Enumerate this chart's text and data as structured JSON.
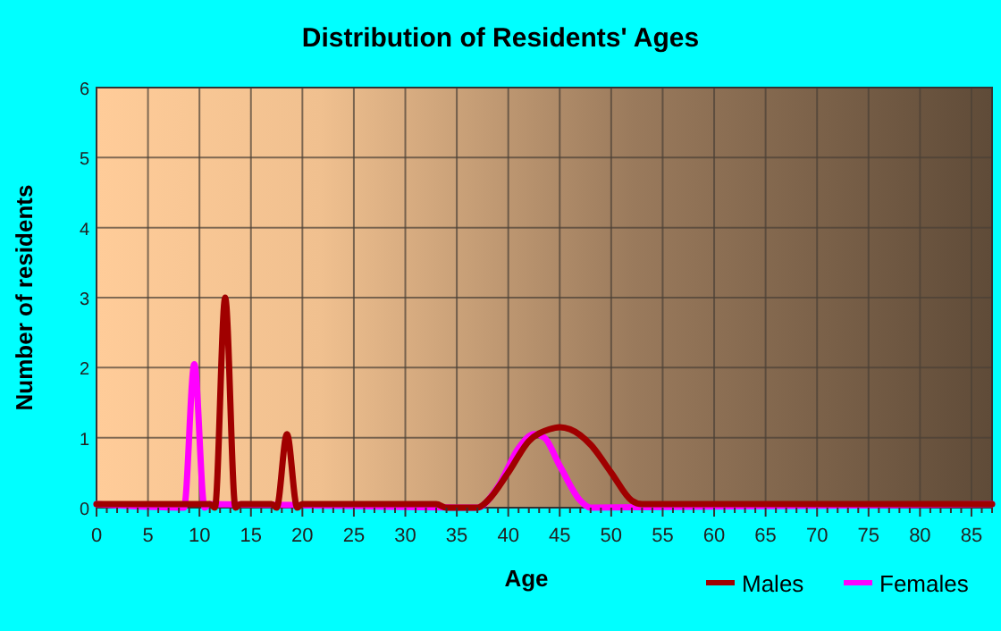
{
  "chart_data": {
    "type": "line",
    "title": "Distribution of Residents' Ages",
    "xlabel": "Age",
    "ylabel": "Number of residents",
    "xlim": [
      0,
      87
    ],
    "xticks": [
      0,
      5,
      10,
      15,
      20,
      25,
      30,
      35,
      40,
      45,
      50,
      55,
      60,
      65,
      70,
      75,
      80,
      85
    ],
    "ylim": [
      0,
      6
    ],
    "yticks": [
      0,
      1,
      2,
      3,
      4,
      5,
      6
    ],
    "grid": true,
    "legend": "bottom right",
    "marker": "none",
    "line_style": "solid",
    "series": [
      {
        "name": "Males",
        "color": "#a00000",
        "x": [
          0,
          11,
          11.5,
          12.5,
          13.5,
          14,
          17,
          17.5,
          18.5,
          19.5,
          20,
          33,
          34,
          37,
          38,
          40,
          42,
          44,
          45,
          46,
          48,
          50,
          52,
          53,
          87
        ],
        "values": [
          0.05,
          0.05,
          0,
          3,
          0,
          0.05,
          0.05,
          0,
          1.05,
          0,
          0.05,
          0.05,
          0,
          0,
          0.1,
          0.5,
          0.95,
          1.12,
          1.15,
          1.12,
          0.9,
          0.5,
          0.1,
          0.05,
          0.05
        ]
      },
      {
        "name": "Females",
        "color": "#ff00ff",
        "x": [
          0,
          8.5,
          9.5,
          10.5,
          11,
          37,
          39,
          41,
          42.5,
          43.5,
          45,
          47,
          48,
          55,
          87
        ],
        "values": [
          0.05,
          0,
          2.05,
          0,
          0.05,
          0,
          0.3,
          0.85,
          1.05,
          1.0,
          0.6,
          0.1,
          0,
          null,
          0.05
        ]
      }
    ]
  }
}
